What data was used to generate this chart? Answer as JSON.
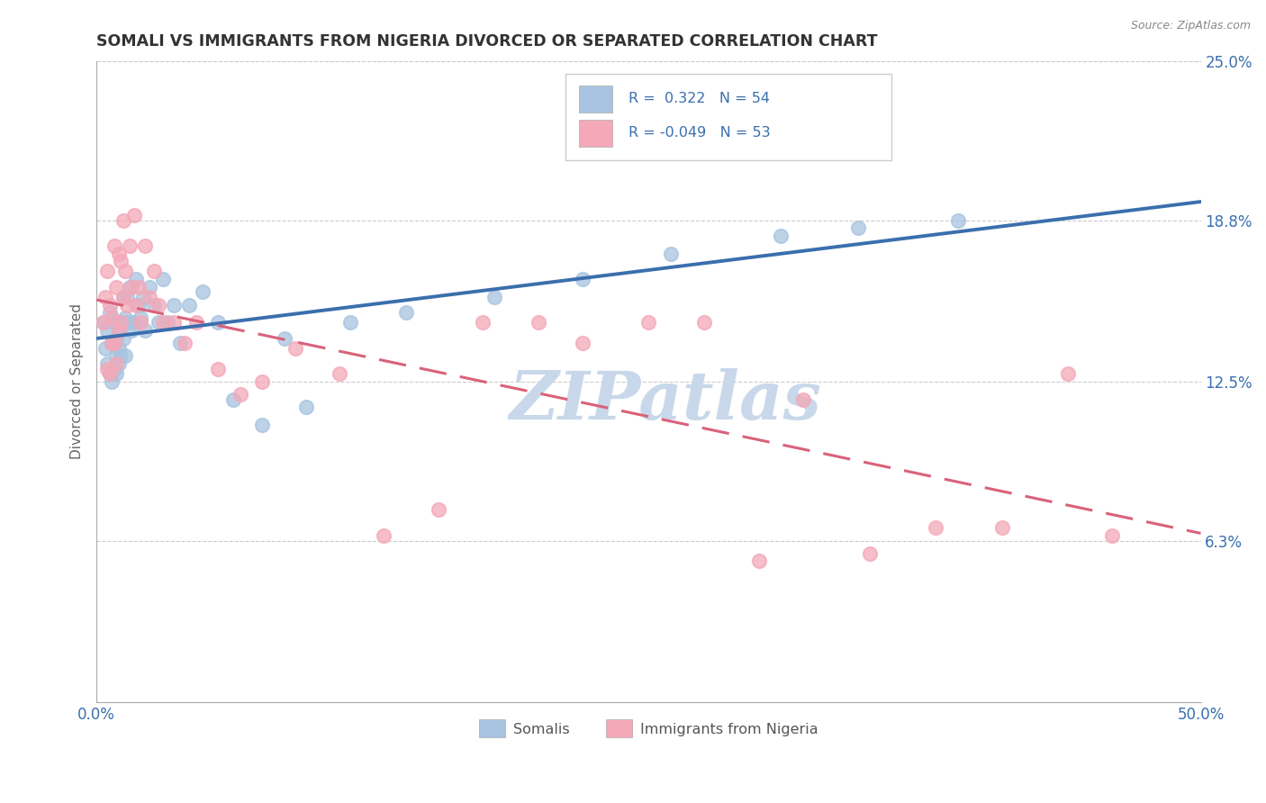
{
  "title": "SOMALI VS IMMIGRANTS FROM NIGERIA DIVORCED OR SEPARATED CORRELATION CHART",
  "source_text": "Source: ZipAtlas.com",
  "ylabel": "Divorced or Separated",
  "xlim": [
    0.0,
    0.5
  ],
  "ylim": [
    0.0,
    0.25
  ],
  "xtick_labels": [
    "0.0%",
    "50.0%"
  ],
  "xtick_positions": [
    0.0,
    0.5
  ],
  "ytick_labels": [
    "6.3%",
    "12.5%",
    "18.8%",
    "25.0%"
  ],
  "ytick_positions": [
    0.063,
    0.125,
    0.188,
    0.25
  ],
  "legend_labels": [
    "Somalis",
    "Immigrants from Nigeria"
  ],
  "somali_R": "0.322",
  "somali_N": "54",
  "nigeria_R": "-0.049",
  "nigeria_N": "53",
  "somali_color": "#a8c4e0",
  "nigeria_color": "#f4a8b8",
  "somali_line_color": "#3a6fad",
  "nigeria_line_color": "#d9627a",
  "background_color": "#ffffff",
  "watermark_text": "ZIPatlas",
  "watermark_color": "#c8d8ea",
  "somali_x": [
    0.003,
    0.004,
    0.005,
    0.005,
    0.006,
    0.006,
    0.007,
    0.007,
    0.008,
    0.008,
    0.009,
    0.009,
    0.009,
    0.01,
    0.01,
    0.01,
    0.011,
    0.011,
    0.012,
    0.012,
    0.013,
    0.013,
    0.014,
    0.014,
    0.015,
    0.016,
    0.017,
    0.018,
    0.019,
    0.02,
    0.021,
    0.022,
    0.024,
    0.026,
    0.028,
    0.03,
    0.032,
    0.035,
    0.038,
    0.042,
    0.048,
    0.055,
    0.062,
    0.075,
    0.085,
    0.095,
    0.115,
    0.14,
    0.18,
    0.22,
    0.26,
    0.31,
    0.345,
    0.39
  ],
  "somali_y": [
    0.148,
    0.138,
    0.145,
    0.132,
    0.152,
    0.128,
    0.14,
    0.125,
    0.148,
    0.13,
    0.142,
    0.128,
    0.135,
    0.145,
    0.132,
    0.138,
    0.148,
    0.135,
    0.158,
    0.142,
    0.15,
    0.135,
    0.158,
    0.148,
    0.162,
    0.145,
    0.148,
    0.165,
    0.155,
    0.15,
    0.158,
    0.145,
    0.162,
    0.155,
    0.148,
    0.165,
    0.148,
    0.155,
    0.14,
    0.155,
    0.16,
    0.148,
    0.118,
    0.108,
    0.142,
    0.115,
    0.148,
    0.152,
    0.158,
    0.165,
    0.175,
    0.182,
    0.185,
    0.188
  ],
  "nigeria_x": [
    0.003,
    0.004,
    0.005,
    0.005,
    0.006,
    0.006,
    0.007,
    0.007,
    0.008,
    0.008,
    0.009,
    0.009,
    0.01,
    0.01,
    0.011,
    0.011,
    0.012,
    0.012,
    0.013,
    0.014,
    0.015,
    0.016,
    0.017,
    0.018,
    0.019,
    0.02,
    0.022,
    0.024,
    0.026,
    0.028,
    0.03,
    0.035,
    0.04,
    0.045,
    0.055,
    0.065,
    0.075,
    0.09,
    0.11,
    0.13,
    0.155,
    0.175,
    0.2,
    0.22,
    0.25,
    0.275,
    0.3,
    0.32,
    0.35,
    0.38,
    0.41,
    0.44,
    0.46
  ],
  "nigeria_y": [
    0.148,
    0.158,
    0.168,
    0.13,
    0.155,
    0.128,
    0.15,
    0.14,
    0.178,
    0.14,
    0.162,
    0.132,
    0.175,
    0.145,
    0.172,
    0.148,
    0.188,
    0.158,
    0.168,
    0.155,
    0.178,
    0.162,
    0.19,
    0.155,
    0.162,
    0.148,
    0.178,
    0.158,
    0.168,
    0.155,
    0.148,
    0.148,
    0.14,
    0.148,
    0.13,
    0.12,
    0.125,
    0.138,
    0.128,
    0.065,
    0.075,
    0.148,
    0.148,
    0.14,
    0.148,
    0.148,
    0.055,
    0.118,
    0.058,
    0.068,
    0.068,
    0.128,
    0.065
  ]
}
